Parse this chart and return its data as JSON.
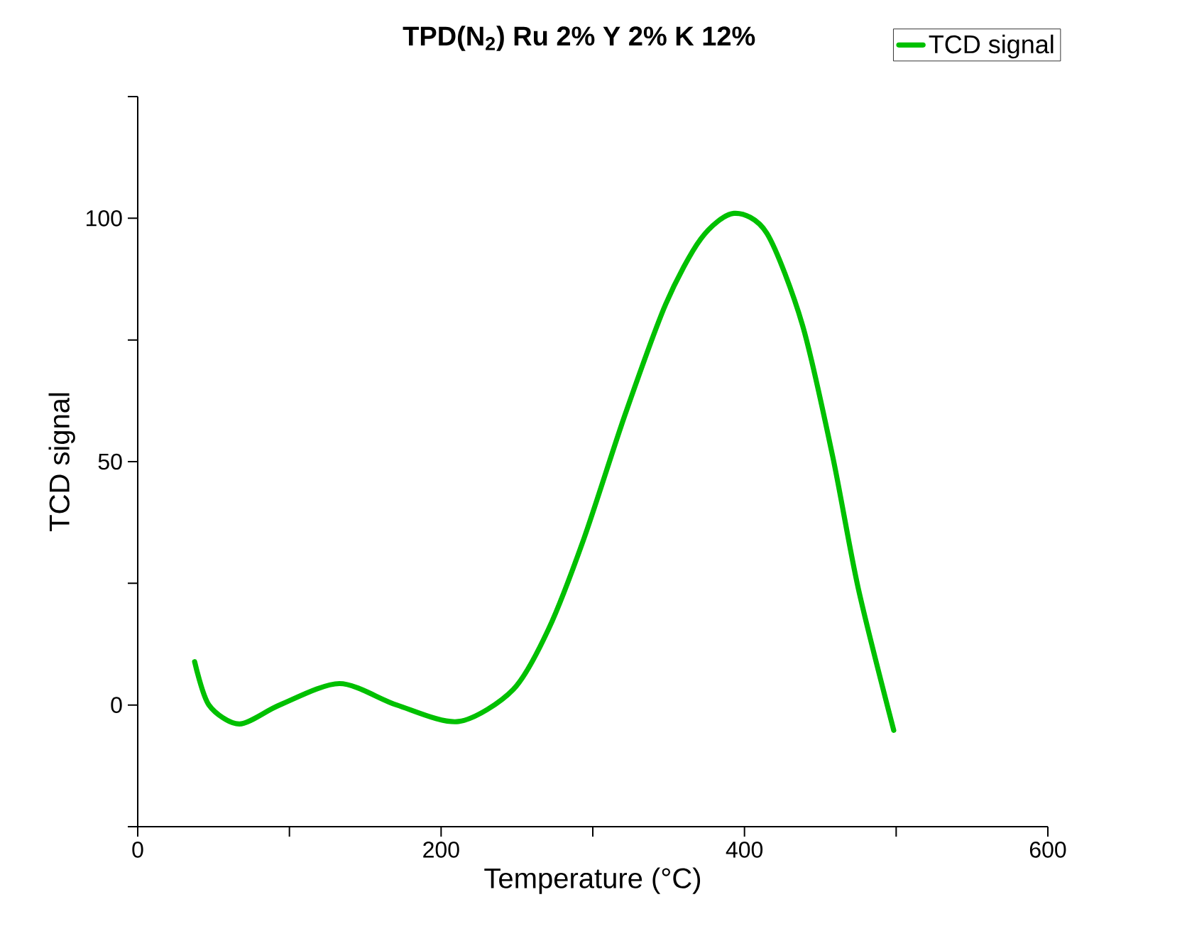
{
  "chart_data": {
    "type": "line",
    "title": "TPD(N$_{2}$) Ru 2% Y 2% K 12%",
    "xlabel": "Temperature (°C)",
    "ylabel": "TCD signal",
    "x": [
      37.5,
      46.9,
      67,
      93.6,
      133,
      170.7,
      211.5,
      247.6,
      271,
      294.4,
      321,
      348,
      371.3,
      393,
      414.8,
      438.2,
      458.2,
      475,
      498.4
    ],
    "series": [
      {
        "name": "TCD signal",
        "color": "#00c000",
        "values": [
          8.9,
          0,
          -3.9,
          0,
          4.4,
          0,
          -3.4,
          3.2,
          15.7,
          34.4,
          59.4,
          82.3,
          95.8,
          101,
          96.9,
          78.1,
          51,
          24,
          -5.2
        ]
      }
    ],
    "xlim": [
      0,
      600
    ],
    "ylim": [
      -25,
      125
    ],
    "xticks": [
      0,
      {
        "value": 100,
        "label": null
      },
      200,
      {
        "value": 300,
        "label": null
      },
      400,
      {
        "value": 500,
        "label": null
      },
      600
    ],
    "yticks": [
      {
        "value": -25,
        "label": null
      },
      0,
      {
        "value": 25,
        "label": null
      },
      50,
      {
        "value": 75,
        "label": null
      },
      100,
      {
        "value": 125,
        "label": null
      }
    ],
    "legend": "top right",
    "grid": false,
    "marker": "none",
    "line_style": "solid"
  }
}
